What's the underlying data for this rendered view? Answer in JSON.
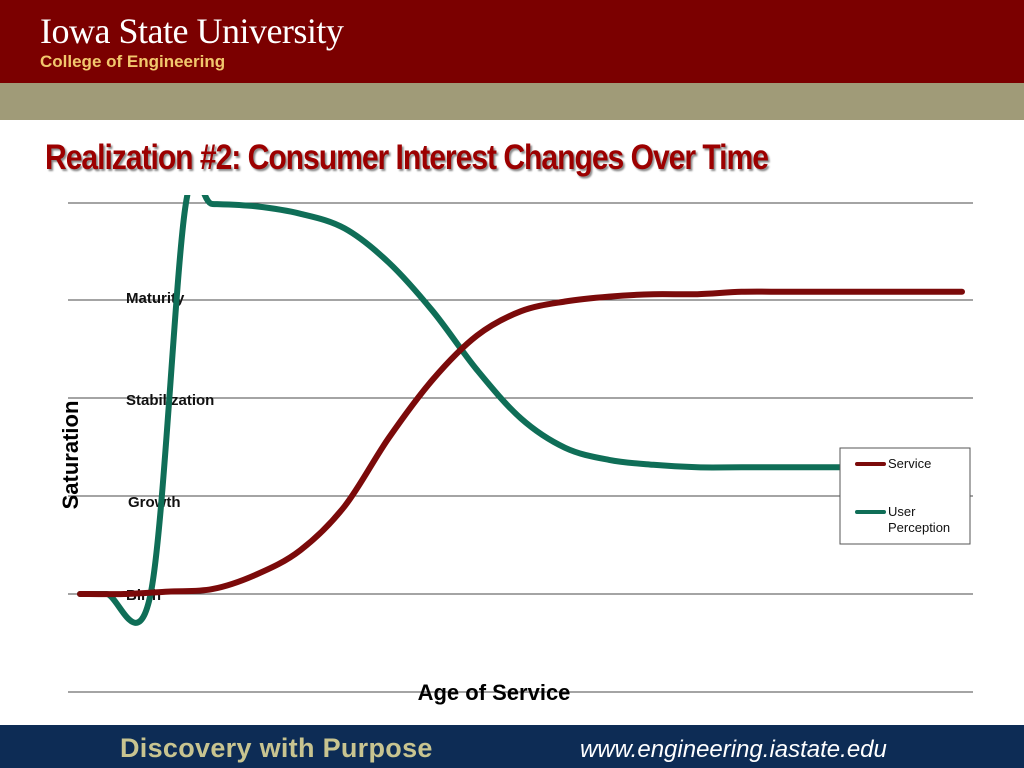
{
  "header": {
    "university": "Iowa State University",
    "college": "College of Engineering"
  },
  "slide": {
    "title": "Realization #2: Consumer Interest Changes Over Time"
  },
  "chart_data": {
    "type": "line",
    "title": "",
    "xlabel": "Age of Service",
    "ylabel": "Saturation",
    "stage_labels": [
      "Birth",
      "Growth",
      "Stabilization",
      "Maturity"
    ],
    "grid": true,
    "legend": "right",
    "colors": {
      "Service": "#7b0a0a",
      "User Perception": "#0f6e57"
    },
    "x_range": [
      0,
      1
    ],
    "y_range": [
      0,
      1
    ],
    "series": [
      {
        "name": "Service",
        "x": [
          0.0,
          0.05,
          0.1,
          0.15,
          0.2,
          0.25,
          0.3,
          0.35,
          0.4,
          0.45,
          0.5,
          0.55,
          0.6,
          0.65,
          0.7,
          0.75,
          0.8,
          0.85,
          0.9,
          0.95,
          1.0
        ],
        "y": [
          0.2,
          0.2,
          0.205,
          0.21,
          0.24,
          0.29,
          0.38,
          0.52,
          0.64,
          0.73,
          0.78,
          0.8,
          0.81,
          0.815,
          0.815,
          0.82,
          0.82,
          0.82,
          0.82,
          0.82,
          0.82
        ]
      },
      {
        "name": "User Perception",
        "x": [
          0.0,
          0.03,
          0.08,
          0.12,
          0.15,
          0.2,
          0.25,
          0.3,
          0.35,
          0.4,
          0.45,
          0.5,
          0.55,
          0.6,
          0.65,
          0.7,
          0.75,
          0.8,
          0.85,
          0.9,
          0.95,
          1.0
        ],
        "y": [
          0.2,
          0.2,
          0.2,
          1.0,
          1.0,
          0.995,
          0.98,
          0.95,
          0.88,
          0.78,
          0.66,
          0.56,
          0.5,
          0.475,
          0.465,
          0.46,
          0.46,
          0.46,
          0.46,
          0.46,
          0.46,
          0.46
        ]
      }
    ]
  },
  "footer": {
    "motto": "Discovery with Purpose",
    "url": "www.engineering.iastate.edu"
  }
}
